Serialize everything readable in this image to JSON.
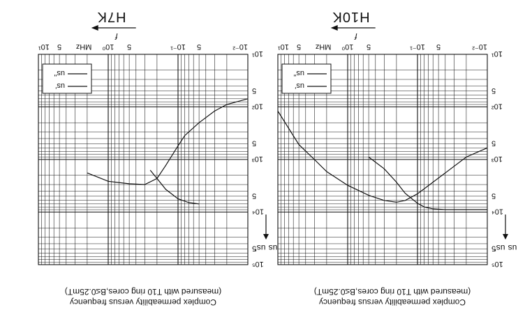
{
  "figure": {
    "caption_line1": "Complex permeability versus frequency",
    "caption_line2": "(measured with T10 ring cores,B≤0.25mT)",
    "colors": {
      "ink": "#111111",
      "paper": "#ffffff"
    }
  },
  "chart_data": [
    {
      "type": "line",
      "title": "H10K",
      "xlabel": "f",
      "x_unit": "MHz",
      "ylabel_left": "us",
      "ylabel_right": "us'",
      "x_scale": "log",
      "y_scale": "log",
      "xlim": [
        0.01,
        10
      ],
      "ylim": [
        10,
        100000
      ],
      "grid": true,
      "legend_position": "top-right",
      "legend": [
        "us'",
        "us\""
      ],
      "x_tick_labels": [
        "10⁻²",
        "5",
        "10⁻¹",
        "5",
        "10⁰",
        "5",
        "10¹"
      ],
      "y_tick_labels": [
        "10¹",
        "5",
        "10²",
        "5",
        "10³",
        "5",
        "10⁴",
        "5",
        "10⁵"
      ],
      "series": [
        {
          "name": "us'",
          "x": [
            0.01,
            0.02,
            0.03,
            0.04,
            0.06,
            0.08,
            0.1,
            0.15,
            0.2,
            0.3,
            0.5
          ],
          "y": [
            9000,
            9000,
            9000,
            9000,
            8700,
            8000,
            6800,
            4400,
            2700,
            1500,
            900
          ]
        },
        {
          "name": "us\"",
          "x": [
            0.01,
            0.02,
            0.04,
            0.08,
            0.1,
            0.15,
            0.2,
            0.3,
            0.5,
            1,
            2,
            3,
            5,
            10
          ],
          "y": [
            600,
            900,
            1800,
            3600,
            4500,
            6000,
            6500,
            6000,
            4800,
            3100,
            1700,
            1000,
            520,
            120
          ]
        }
      ]
    },
    {
      "type": "line",
      "title": "H7K",
      "xlabel": "f",
      "x_unit": "MHz",
      "ylabel_left": "us",
      "ylabel_right": "us'",
      "x_scale": "log",
      "y_scale": "log",
      "xlim": [
        0.01,
        10
      ],
      "ylim": [
        10,
        100000
      ],
      "grid": true,
      "legend_position": "top-right",
      "legend": [
        "us'",
        "us\""
      ],
      "x_tick_labels": [
        "10⁻²",
        "5",
        "10⁻¹",
        "5",
        "10⁰",
        "5",
        "10¹"
      ],
      "y_tick_labels": [
        "10¹",
        "5",
        "10²",
        "5",
        "10³",
        "5",
        "10⁴",
        "5",
        "10⁵"
      ],
      "series": [
        {
          "name": "us'",
          "x": [
            0.05,
            0.07,
            0.1,
            0.15,
            0.2,
            0.25
          ],
          "y": [
            7000,
            6600,
            5600,
            3700,
            2300,
            1600
          ]
        },
        {
          "name": "us\"",
          "x": [
            0.01,
            0.02,
            0.03,
            0.05,
            0.08,
            0.1,
            0.15,
            0.2,
            0.3,
            0.5,
            1,
            2
          ],
          "y": [
            70,
            90,
            120,
            200,
            350,
            550,
            1300,
            2300,
            3000,
            2900,
            2600,
            1800
          ]
        }
      ]
    }
  ]
}
